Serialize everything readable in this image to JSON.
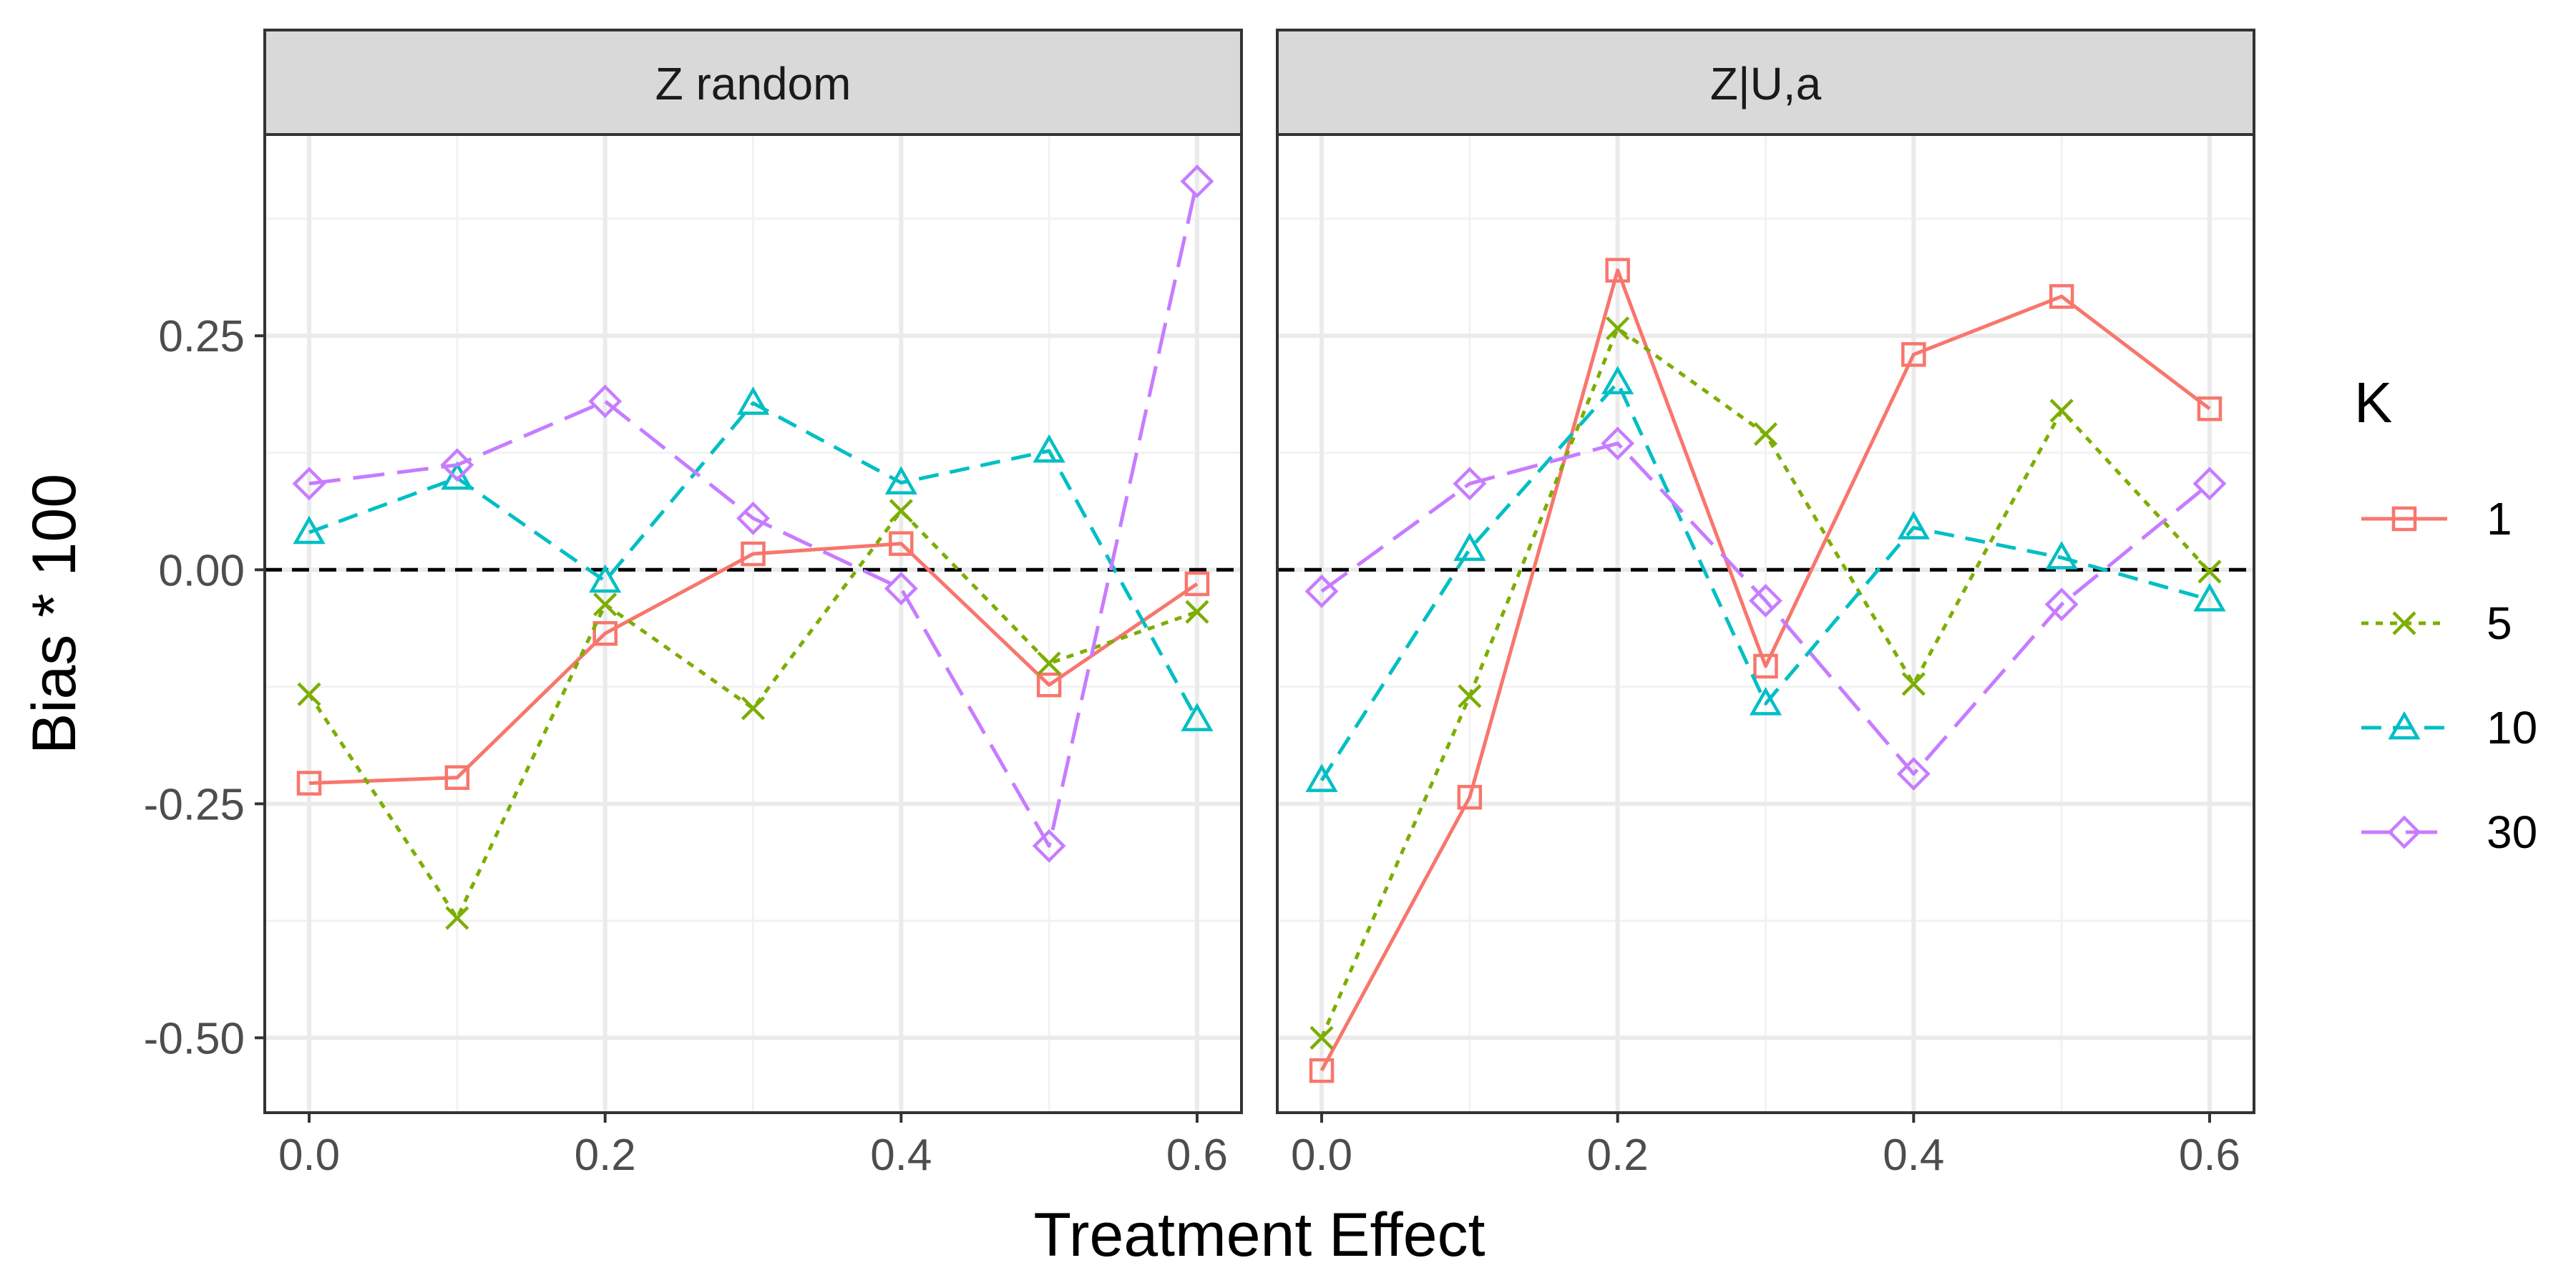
{
  "chart_data": {
    "type": "line",
    "xlabel": "Treatment Effect",
    "ylabel": "Bias * 100",
    "xlim": [
      -0.03,
      0.63
    ],
    "ylim": [
      -0.58,
      0.465
    ],
    "x_ticks": [
      "0.0",
      "0.2",
      "0.4",
      "0.6"
    ],
    "y_ticks": [
      "0.25",
      "0.00",
      "-0.25",
      "-0.50"
    ],
    "reference_line": 0.0,
    "grid": true,
    "legend": {
      "title": "K",
      "placement": "right",
      "entries": [
        "1",
        "5",
        "10",
        "30"
      ]
    },
    "x": [
      0.0,
      0.1,
      0.2,
      0.3,
      0.4,
      0.5,
      0.6
    ],
    "panels": [
      {
        "title": "Z random",
        "series": [
          {
            "name": "1",
            "color": "#F8766D",
            "marker": "square",
            "dash": "solid",
            "values": [
              -0.228,
              -0.222,
              -0.068,
              0.017,
              0.028,
              -0.123,
              -0.015
            ]
          },
          {
            "name": "5",
            "color": "#7CAE00",
            "marker": "x",
            "dash": "dotted",
            "values": [
              -0.133,
              -0.372,
              -0.037,
              -0.148,
              0.063,
              -0.1,
              -0.045
            ]
          },
          {
            "name": "10",
            "color": "#00BFC4",
            "marker": "triangle",
            "dash": "dashed",
            "values": [
              0.04,
              0.098,
              -0.012,
              0.178,
              0.093,
              0.127,
              -0.16
            ]
          },
          {
            "name": "30",
            "color": "#C77CFF",
            "marker": "diamond",
            "dash": "longdash",
            "values": [
              0.092,
              0.112,
              0.18,
              0.055,
              -0.02,
              -0.295,
              0.415
            ]
          }
        ]
      },
      {
        "title": "Z|U,a",
        "series": [
          {
            "name": "1",
            "color": "#F8766D",
            "marker": "square",
            "dash": "solid",
            "values": [
              -0.535,
              -0.243,
              0.32,
              -0.103,
              0.23,
              0.292,
              0.172
            ]
          },
          {
            "name": "5",
            "color": "#7CAE00",
            "marker": "x",
            "dash": "dotted",
            "values": [
              -0.5,
              -0.135,
              0.258,
              0.145,
              -0.122,
              0.17,
              -0.002
            ]
          },
          {
            "name": "10",
            "color": "#00BFC4",
            "marker": "triangle",
            "dash": "dashed",
            "values": [
              -0.225,
              0.022,
              0.2,
              -0.143,
              0.045,
              0.013,
              -0.032
            ]
          },
          {
            "name": "30",
            "color": "#C77CFF",
            "marker": "diamond",
            "dash": "longdash",
            "values": [
              -0.023,
              0.092,
              0.135,
              -0.033,
              -0.218,
              -0.037,
              0.092
            ]
          }
        ]
      }
    ]
  }
}
